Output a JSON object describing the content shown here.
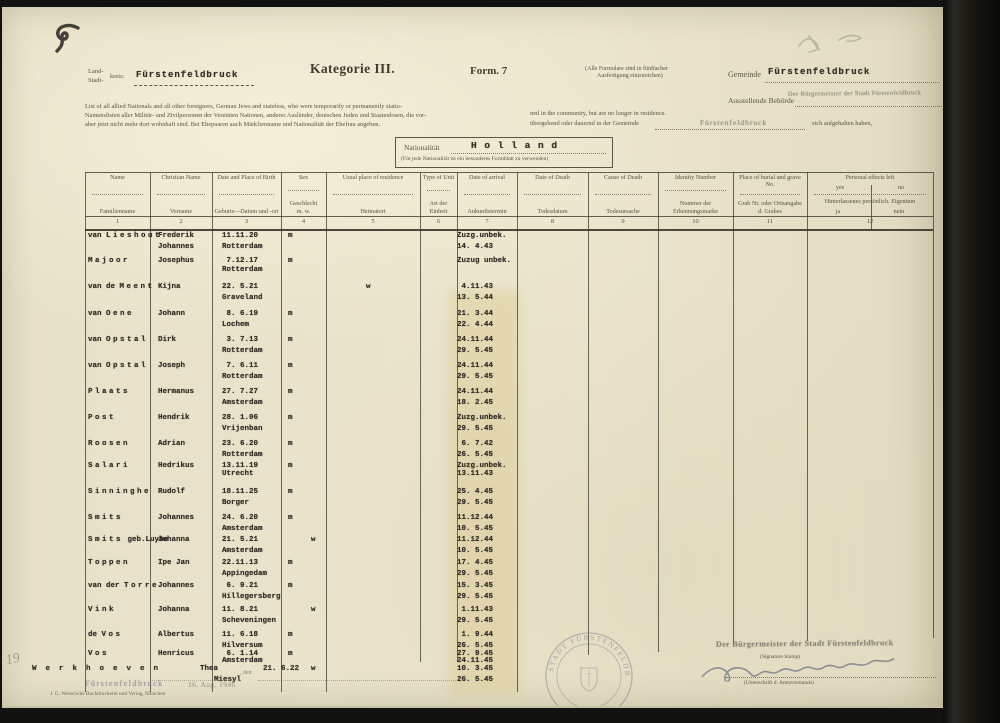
{
  "page": {
    "title": "Kategorie III.",
    "form_no": "Form. 7",
    "copies_note_1": "(Alle Formulare sind in fünffacher",
    "copies_note_2": "Ausfertigung einzureichen)"
  },
  "header": {
    "kreis_label_1": "Land-",
    "kreis_label_2": "Stadt-",
    "kreis_label_3": "kreis:",
    "kreis_value": "Fürstenfeldbruck",
    "gemeinde_label": "Gemeinde",
    "gemeinde_value": "Fürstenfeldbruck",
    "behoerde_label": "Ausstellende Behörde",
    "intro_en_1": "List of all allied Nationals and all other foreigners, German Jews and stateless, who were temporarily or permanently statio-",
    "intro_en_2": "ned in the community, but are no longer in residence.",
    "intro_de_1": "Namenslisten aller Militär- und Zivilpersonen der Vereinten Nationen, anderer Ausländer, deutschen Juden und Staatenlosen, die vor-",
    "intro_de_2": "übergehend oder dauernd in der Gemeinde",
    "intro_de_3": "sich aufgehalten haben,",
    "intro_de_4": "aber jetzt nicht mehr dort wohnhaft sind. Bei Ehepaaren auch Mädchenname und Nationalität der Ehefrau angeben."
  },
  "nationality": {
    "label": "Nationalität",
    "value": "H o l l a n d",
    "note": "(Für jede Nationalität ist ein besonderes Formblatt zu verwenden)"
  },
  "table": {
    "columns": [
      {
        "en": "Name",
        "de": "Familienname",
        "num": "1"
      },
      {
        "en": "Christian Name",
        "de": "Vorname",
        "num": "2"
      },
      {
        "en": "Date and Place of Birth",
        "de": "Geburts—Datum und -ort",
        "num": "3"
      },
      {
        "en": "Sex",
        "de": "Geschlecht\nm.    w.",
        "num": "4"
      },
      {
        "en": "Usual place of residence",
        "de": "Heimatort",
        "num": "5"
      },
      {
        "en": "Type of Unit",
        "de": "Art der Einheit",
        "num": "6"
      },
      {
        "en": "Date of arrival",
        "de": "Ankunftstermin",
        "num": "7"
      },
      {
        "en": "Date of Death",
        "de": "Todesdatum",
        "num": "8"
      },
      {
        "en": "Cause of Death",
        "de": "Todesursache",
        "num": "9"
      },
      {
        "en": "Identity Number",
        "de": "Nummer der Erkennungsmarke",
        "num": "10"
      },
      {
        "en": "Place of burial and grave No.",
        "de": "Grab Nr. oder Ortsangabe d. Grabes",
        "num": "11"
      },
      {
        "en": "Personal effects left",
        "de": "Hinterlassenes persönlich. Eigentum",
        "num": "12",
        "sub_en_yes": "yes",
        "sub_en_no": "no",
        "sub_de_yes": "ja",
        "sub_de_no": "nein"
      }
    ],
    "rows": [
      {
        "prefix": "van",
        "surname": "Lieshout",
        "suffix": "",
        "given": [
          "Frederik",
          "Johannes"
        ],
        "birth_date": "11.11.20",
        "birth_place": "Rotterdam",
        "sex": "m",
        "arrival": [
          "Zuzg.unbek.",
          "14. 4.43"
        ]
      },
      {
        "prefix": "",
        "surname": "Majoor",
        "suffix": "",
        "given": [
          "Josephus"
        ],
        "birth_date": " 7.12.17",
        "birth_place": "Rotterdam",
        "sex": "m",
        "arrival": [
          "Zuzug unbek."
        ]
      },
      {
        "prefix": "van de",
        "surname": "Meent",
        "suffix": "",
        "given": [
          "Kijna"
        ],
        "birth_date": "22. 5.21",
        "birth_place": "Graveland",
        "sex": "w",
        "arrival": [
          " 4.11.43",
          "13. 5.44"
        ]
      },
      {
        "prefix": "van",
        "surname": "Oene",
        "suffix": "",
        "given": [
          "Johann"
        ],
        "birth_date": " 8. 6.19",
        "birth_place": "Lochem",
        "sex": "m",
        "arrival": [
          "21. 3.44",
          "22. 4.44"
        ]
      },
      {
        "prefix": "van",
        "surname": "Opstal",
        "suffix": "",
        "given": [
          "Dirk"
        ],
        "birth_date": " 3. 7.13",
        "birth_place": "Rotterdam",
        "sex": "m",
        "arrival": [
          "24.11.44",
          "29. 5.45"
        ]
      },
      {
        "prefix": "van",
        "surname": "Opstal",
        "suffix": "",
        "given": [
          "Joseph"
        ],
        "birth_date": " 7. 6.11",
        "birth_place": "Rotterdam",
        "sex": "m",
        "arrival": [
          "24.11.44",
          "29. 5.45"
        ]
      },
      {
        "prefix": "",
        "surname": "Plaats",
        "suffix": "",
        "given": [
          "Hermanus"
        ],
        "birth_date": "27. 7.27",
        "birth_place": "Amsterdam",
        "sex": "m",
        "arrival": [
          "24.11.44",
          "18. 2.45"
        ]
      },
      {
        "prefix": "",
        "surname": "Post",
        "suffix": "",
        "given": [
          "Hendrik"
        ],
        "birth_date": "28. 1.06",
        "birth_place": "Vrijenban",
        "sex": "m",
        "arrival": [
          "Zuzg.unbek.",
          "29. 5.45"
        ]
      },
      {
        "prefix": "",
        "surname": "Roosen",
        "suffix": "",
        "given": [
          "Adrian"
        ],
        "birth_date": "23. 6.20",
        "birth_place": "Rotterdam",
        "sex": "m",
        "arrival": [
          " 6. 7.42",
          "26. 5.45"
        ]
      },
      {
        "prefix": "",
        "surname": "Salari",
        "suffix": "",
        "given": [
          "Hedrikus"
        ],
        "birth_date": "13.11.19",
        "birth_place": "Utrecht",
        "sex": "m",
        "arrival": [
          "Zuzg.unbek.",
          "13.11.43"
        ]
      },
      {
        "prefix": "",
        "surname": "Sinninghe",
        "suffix": "",
        "given": [
          "Rudolf"
        ],
        "birth_date": "18.11.25",
        "birth_place": "Borger",
        "sex": "m",
        "arrival": [
          "25. 4.45",
          "29. 5.45"
        ]
      },
      {
        "prefix": "",
        "surname": "Smits",
        "suffix": "",
        "given": [
          "Johannes"
        ],
        "birth_date": "24. 6.20",
        "birth_place": "Amsterdam",
        "sex": "m",
        "arrival": [
          "11.12.44",
          "10. 5.45"
        ]
      },
      {
        "prefix": "",
        "surname": "Smits",
        "suffix": " geb.Luybe",
        "given": [
          "Johanna"
        ],
        "birth_date": "21. 5.21",
        "birth_place": "Amsterdam",
        "sex": "w",
        "arrival": [
          "11.12.44",
          "10. 5.45"
        ]
      },
      {
        "prefix": "",
        "surname": "Toppen",
        "suffix": "",
        "given": [
          "Ipe Jan"
        ],
        "birth_date": "22.11.13",
        "birth_place": "Appingedam",
        "sex": "m",
        "arrival": [
          "17. 4.45",
          "29. 5.45"
        ]
      },
      {
        "prefix": "van der",
        "surname": "Torre",
        "suffix": "",
        "given": [
          "Johannes"
        ],
        "birth_date": " 6. 9.21",
        "birth_place": "Hillegersberg",
        "sex": "m",
        "arrival": [
          "15. 3.45",
          "29. 5.45"
        ]
      },
      {
        "prefix": "",
        "surname": "Vink",
        "suffix": "",
        "given": [
          "Johanna"
        ],
        "birth_date": "11. 8.21",
        "birth_place": "Scheveningen",
        "sex": "w",
        "arrival": [
          " 1.11.43",
          "29. 5.45"
        ]
      },
      {
        "prefix": "de",
        "surname": "Vos",
        "suffix": "",
        "given": [
          "Albertus"
        ],
        "birth_date": "11. 6.18",
        "birth_place": "Hilversum",
        "sex": "m",
        "arrival": [
          " 1. 9.44",
          "26. 5.45"
        ]
      },
      {
        "prefix": "",
        "surname": "Vos",
        "suffix": "",
        "given": [
          "Henricus"
        ],
        "birth_date": " 6. 1.14",
        "birth_place": "Amsterdam",
        "sex": "m",
        "arrival": [
          "27. 9.45",
          "24.11.45"
        ]
      },
      {
        "prefix": "",
        "surname": "Werkhoeven",
        "suffix": "",
        "given": [
          "Thea"
        ],
        "birth_date": "21. 6.22",
        "birth_place": "Miesyl",
        "sex": "w",
        "arrival": [
          "10. 3.45",
          "26. 5.45"
        ]
      }
    ]
  },
  "stamps": {
    "behoerde_stamp": "Der Bürgermeister der Stadt Fürstenfeldbruck",
    "gemeinde_blank_stamp": "Fürstenfeldbruck",
    "date_stamp_place": "Fürstenfeldbruck",
    "date_stamp_date": "16. Aug. 1946",
    "seal_text": "STADT FÜRSTENFELDBRUCK",
    "signer_org": "Der Bürgermeister der Stadt Fürstenfeldbruck",
    "signature_stamp_label": "(Signature Stamp)",
    "signature_caption": "(Unterschrift d. Amtsvorstands)"
  },
  "annotations": {
    "pencil_number": "19",
    "printed_den": ", den"
  },
  "footer": {
    "printer_line": "J. G. Weiss'sche Buchdruckerei und Verlag, München"
  },
  "colors": {
    "paper": "#e7e2c9",
    "ink": "#33302a",
    "print_ink": "#5a5442",
    "stamp_purple": "#827694",
    "stamp_gray": "#7e786c"
  }
}
